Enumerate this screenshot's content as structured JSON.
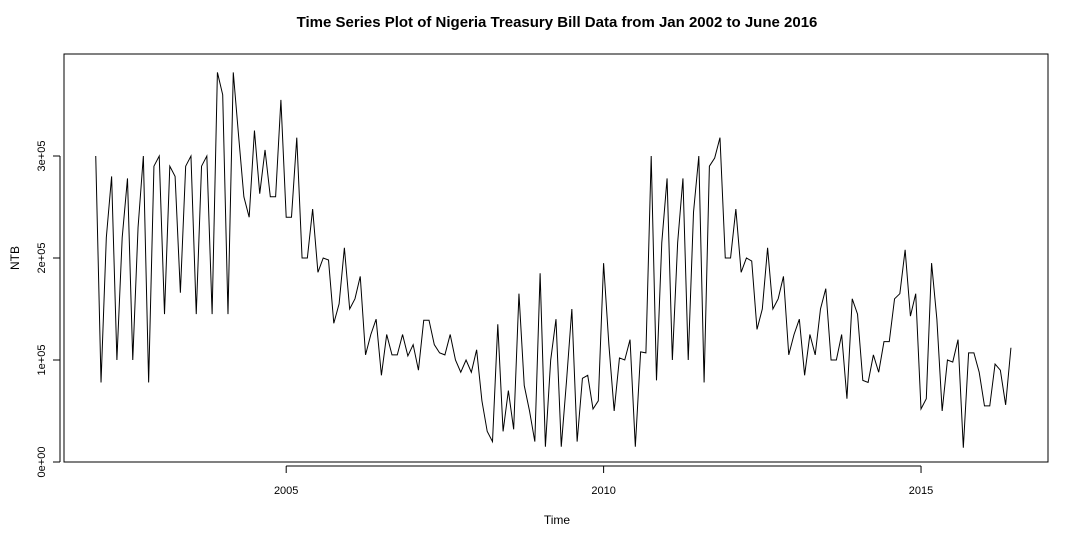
{
  "chart_data": {
    "type": "line",
    "title": "Time Series Plot of Nigeria Treasury Bill Data from Jan 2002 to June 2016",
    "xlabel": "Time",
    "ylabel": "NTB",
    "xlim": [
      2001.5,
      2017.0
    ],
    "ylim": [
      0,
      400000
    ],
    "grid": false,
    "x_ticks": [
      {
        "value": 2005,
        "label": "2005"
      },
      {
        "value": 2010,
        "label": "2010"
      },
      {
        "value": 2015,
        "label": "2015"
      }
    ],
    "y_ticks": [
      {
        "value": 0,
        "label": "0e+00"
      },
      {
        "value": 100000,
        "label": "1e+05"
      },
      {
        "value": 200000,
        "label": "2e+05"
      },
      {
        "value": 300000,
        "label": "3e+05"
      }
    ],
    "series": [
      {
        "color": "#000000",
        "x_start": 2002.0,
        "x_step": 0.08333,
        "values": [
          300000,
          78000,
          220000,
          280000,
          100000,
          220000,
          278000,
          100000,
          230000,
          300000,
          78000,
          290000,
          300000,
          145000,
          290000,
          280000,
          166000,
          290000,
          300000,
          145000,
          290000,
          300000,
          145000,
          382000,
          360000,
          145000,
          382000,
          320000,
          260000,
          240000,
          325000,
          263000,
          306000,
          260000,
          260000,
          355000,
          240000,
          240000,
          318000,
          200000,
          200000,
          248000,
          186000,
          200000,
          198000,
          136000,
          155000,
          210000,
          150000,
          160000,
          182000,
          105000,
          125000,
          140000,
          85000,
          125000,
          105000,
          105000,
          125000,
          104000,
          115000,
          90000,
          139000,
          139000,
          115000,
          107000,
          105000,
          125000,
          100000,
          88000,
          100000,
          88000,
          110000,
          60000,
          30000,
          20000,
          135000,
          30000,
          70000,
          32000,
          165000,
          75000,
          50000,
          20000,
          185000,
          15000,
          100000,
          140000,
          15000,
          80000,
          150000,
          20000,
          82000,
          85000,
          52000,
          60000,
          195000,
          115000,
          50000,
          102000,
          100000,
          120000,
          15000,
          108000,
          107000,
          300000,
          80000,
          215000,
          278000,
          100000,
          215000,
          278000,
          100000,
          245000,
          300000,
          78000,
          290000,
          298000,
          318000,
          200000,
          200000,
          248000,
          186000,
          200000,
          197000,
          130000,
          150000,
          210000,
          150000,
          160000,
          182000,
          105000,
          125000,
          140000,
          85000,
          125000,
          105000,
          150000,
          170000,
          100000,
          100000,
          125000,
          62000,
          160000,
          145000,
          80000,
          78000,
          105000,
          88000,
          118000,
          118000,
          160000,
          165000,
          208000,
          143000,
          165000,
          52000,
          62000,
          195000,
          140000,
          50000,
          100000,
          98000,
          120000,
          14000,
          107000,
          107000,
          88000,
          55000,
          55000,
          96000,
          90000,
          56000,
          112000
        ]
      }
    ]
  }
}
